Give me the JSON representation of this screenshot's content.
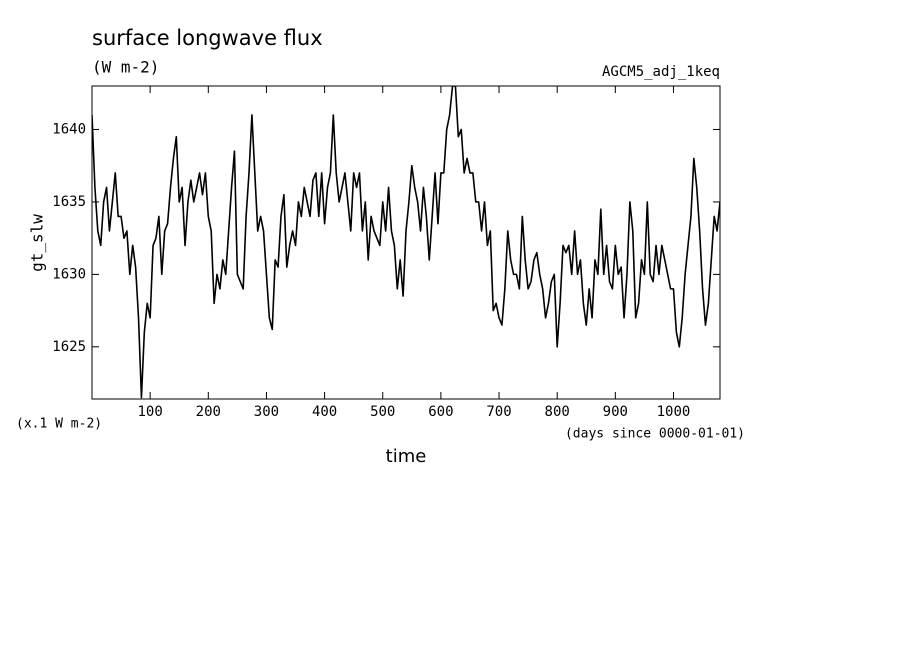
{
  "chart_data": {
    "type": "line",
    "title": "surface longwave flux",
    "subtitle": "(W m-2)",
    "annotation": "AGCM5_adj_1keq",
    "y_label": "gt_slw",
    "y_unit": "(x.1 W m-2)",
    "x_unit": "(days since 0000-01-01)",
    "x_label": "time",
    "xlim": [
      0,
      1080
    ],
    "ylim": [
      1621.4,
      1643
    ],
    "xticks": [
      100,
      200,
      300,
      400,
      500,
      600,
      700,
      800,
      900,
      1000
    ],
    "yticks": [
      1625,
      1630,
      1635,
      1640
    ],
    "color": "#000000",
    "x": [
      0,
      5,
      10,
      15,
      20,
      25,
      30,
      35,
      40,
      45,
      50,
      55,
      60,
      65,
      70,
      75,
      80,
      85,
      90,
      95,
      100,
      105,
      110,
      115,
      120,
      125,
      130,
      135,
      140,
      145,
      150,
      155,
      160,
      165,
      170,
      175,
      180,
      185,
      190,
      195,
      200,
      205,
      210,
      215,
      220,
      225,
      230,
      235,
      240,
      245,
      250,
      255,
      260,
      265,
      270,
      275,
      280,
      285,
      290,
      295,
      300,
      305,
      310,
      315,
      320,
      325,
      330,
      335,
      340,
      345,
      350,
      355,
      360,
      365,
      370,
      375,
      380,
      385,
      390,
      395,
      400,
      405,
      410,
      415,
      420,
      425,
      430,
      435,
      440,
      445,
      450,
      455,
      460,
      465,
      470,
      475,
      480,
      485,
      490,
      495,
      500,
      505,
      510,
      515,
      520,
      525,
      530,
      535,
      540,
      545,
      550,
      555,
      560,
      565,
      570,
      575,
      580,
      585,
      590,
      595,
      600,
      605,
      610,
      615,
      620,
      625,
      630,
      635,
      640,
      645,
      650,
      655,
      660,
      665,
      670,
      675,
      680,
      685,
      690,
      695,
      700,
      705,
      710,
      715,
      720,
      725,
      730,
      735,
      740,
      745,
      750,
      755,
      760,
      765,
      770,
      775,
      780,
      785,
      790,
      795,
      800,
      805,
      810,
      815,
      820,
      825,
      830,
      835,
      840,
      845,
      850,
      855,
      860,
      865,
      870,
      875,
      880,
      885,
      890,
      895,
      900,
      905,
      910,
      915,
      920,
      925,
      930,
      935,
      940,
      945,
      950,
      955,
      960,
      965,
      970,
      975,
      980,
      985,
      990,
      995,
      1000,
      1005,
      1010,
      1015,
      1020,
      1025,
      1030,
      1035,
      1040,
      1045,
      1050,
      1055,
      1060,
      1065,
      1070,
      1075,
      1080
    ],
    "values": [
      1641,
      1636,
      1633,
      1632,
      1635,
      1636,
      1633,
      1635,
      1637,
      1634,
      1634,
      1632.5,
      1633,
      1630,
      1632,
      1630.5,
      1627,
      1621.5,
      1626,
      1628,
      1627,
      1632,
      1632.5,
      1634,
      1630,
      1633,
      1633.5,
      1636,
      1638,
      1639.5,
      1635,
      1636,
      1632,
      1635,
      1636.5,
      1635,
      1636,
      1637,
      1635.5,
      1637,
      1634,
      1633,
      1628,
      1630,
      1629,
      1631,
      1630,
      1633,
      1636,
      1638.5,
      1630,
      1629.5,
      1629,
      1634,
      1637,
      1641,
      1637,
      1633,
      1634,
      1633,
      1630,
      1627,
      1626.2,
      1631,
      1630.5,
      1634,
      1635.5,
      1630.5,
      1632,
      1633,
      1632,
      1635,
      1634,
      1636,
      1635,
      1634,
      1636.5,
      1637,
      1634,
      1637,
      1633.5,
      1636,
      1637,
      1641,
      1637,
      1635,
      1636,
      1637,
      1635,
      1633,
      1637,
      1636,
      1637,
      1633,
      1635,
      1631,
      1634,
      1633,
      1632.5,
      1632,
      1635,
      1633,
      1636,
      1633,
      1632,
      1629,
      1631,
      1628.5,
      1633,
      1635,
      1637.5,
      1636,
      1635,
      1633,
      1636,
      1634,
      1631,
      1634,
      1637,
      1633.5,
      1637,
      1637,
      1640,
      1641,
      1643,
      1643,
      1639.5,
      1640,
      1637,
      1638,
      1637,
      1637,
      1635,
      1635,
      1633,
      1635,
      1632,
      1633,
      1627.5,
      1628,
      1627,
      1626.5,
      1629,
      1633,
      1631,
      1630,
      1630,
      1629,
      1634,
      1631,
      1629,
      1629.5,
      1631,
      1631.5,
      1630,
      1629,
      1627,
      1628,
      1629.5,
      1630,
      1625,
      1628,
      1632,
      1631.5,
      1632,
      1630,
      1633,
      1630,
      1631,
      1628,
      1626.5,
      1629,
      1627,
      1631,
      1630,
      1634.5,
      1630,
      1632,
      1629.5,
      1629,
      1632,
      1630,
      1630.5,
      1627,
      1630,
      1635,
      1633,
      1627,
      1628,
      1631,
      1630,
      1635,
      1630,
      1629.5,
      1632,
      1630,
      1632,
      1631,
      1630,
      1629,
      1629,
      1626,
      1625,
      1627,
      1630,
      1632,
      1634,
      1638,
      1636,
      1633,
      1629,
      1626.5,
      1628,
      1631,
      1634,
      1633,
      1635
    ]
  }
}
